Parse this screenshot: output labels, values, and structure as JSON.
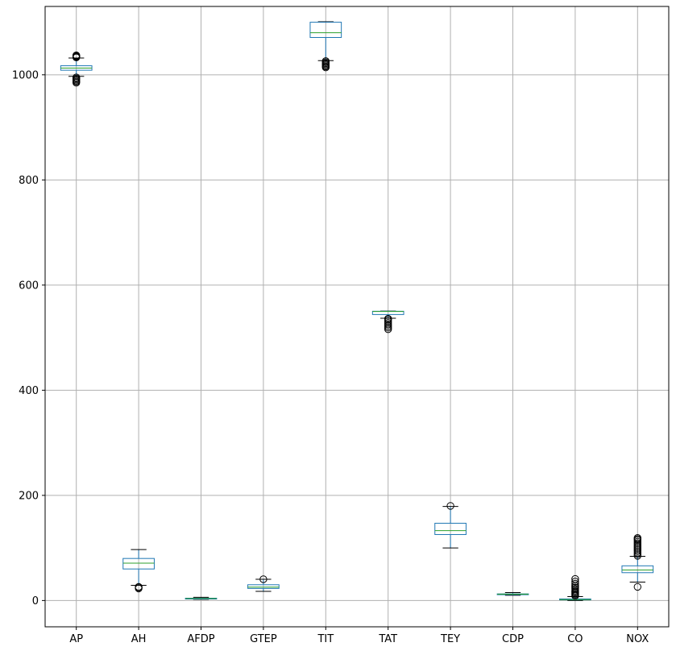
{
  "chart_data": {
    "type": "box",
    "title": "",
    "xlabel": "",
    "ylabel": "",
    "ylim": [
      -50,
      1130
    ],
    "yticks": [
      0,
      200,
      400,
      600,
      800,
      1000
    ],
    "grid": true,
    "colors": {
      "box": "#1f77b4",
      "median": "#2ca02c",
      "whisker": "#000000",
      "grid": "#b0b0b0"
    },
    "categories": [
      "AP",
      "AH",
      "AFDP",
      "GTEP",
      "TIT",
      "TAT",
      "TEY",
      "CDP",
      "CO",
      "NOX"
    ],
    "boxes": [
      {
        "name": "AP",
        "whislo": 997,
        "q1": 1008.7,
        "med": 1012.8,
        "q3": 1017.2,
        "whishi": 1032,
        "fliers": [
          985,
          987,
          989,
          991,
          993,
          995,
          1033,
          1034,
          1035,
          1036,
          1037
        ]
      },
      {
        "name": "AH",
        "whislo": 29,
        "q1": 60,
        "med": 71,
        "q3": 80,
        "whishi": 97,
        "fliers": [
          23,
          25,
          26
        ]
      },
      {
        "name": "AFDP",
        "whislo": 2.3,
        "q1": 3.4,
        "med": 3.9,
        "q3": 4.4,
        "whishi": 6.2,
        "fliers": []
      },
      {
        "name": "GTEP",
        "whislo": 17.5,
        "q1": 23,
        "med": 25.5,
        "q3": 30,
        "whishi": 40.5,
        "fliers": [
          40.5
        ]
      },
      {
        "name": "TIT",
        "whislo": 1027,
        "q1": 1071,
        "med": 1080,
        "q3": 1100,
        "whishi": 1100.9,
        "fliers": [
          1014,
          1016,
          1018,
          1020,
          1022,
          1024,
          1026
        ]
      },
      {
        "name": "TAT",
        "whislo": 537,
        "q1": 544,
        "med": 549.8,
        "q3": 550.2,
        "whishi": 550.6,
        "fliers": [
          516,
          519,
          522,
          525,
          528,
          531,
          534,
          536
        ]
      },
      {
        "name": "TEY",
        "whislo": 100,
        "q1": 125.5,
        "med": 133,
        "q3": 147,
        "whishi": 179,
        "fliers": [
          180
        ]
      },
      {
        "name": "CDP",
        "whislo": 9.9,
        "q1": 11.5,
        "med": 12,
        "q3": 12.6,
        "whishi": 15.2,
        "fliers": []
      },
      {
        "name": "CO",
        "whislo": 0,
        "q1": 1.2,
        "med": 1.8,
        "q3": 3,
        "whishi": 7.5,
        "fliers": [
          9,
          11,
          13,
          15,
          17,
          19,
          22,
          25,
          28,
          32,
          36,
          41
        ]
      },
      {
        "name": "NOX",
        "whislo": 35,
        "q1": 53,
        "med": 58,
        "q3": 66,
        "whishi": 84,
        "fliers": [
          26,
          85,
          88,
          91,
          94,
          97,
          100,
          103,
          106,
          109,
          112,
          115,
          117,
          119
        ]
      }
    ]
  }
}
